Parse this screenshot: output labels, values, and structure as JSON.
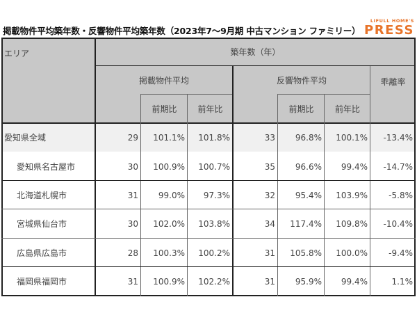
{
  "title": "掲載物件平均築年数・反響物件平均築年数（2023年7〜9月期 中古マンション ファミリー）",
  "logo": {
    "top": "LIFULL HOME'S",
    "main": "PRESS",
    "color": "#e8742a"
  },
  "table": {
    "headers": {
      "area": "エリア",
      "group": "築年数（年）",
      "listed": "掲載物件平均",
      "responded": "反響物件平均",
      "divergence": "乖離率",
      "qoq": "前期比",
      "yoy": "前年比"
    },
    "rows": [
      {
        "area": "愛知県全域",
        "listed": "29",
        "listed_qoq": "101.1%",
        "listed_yoy": "101.8%",
        "responded": "33",
        "responded_qoq": "96.8%",
        "responded_yoy": "100.1%",
        "divergence": "-13.4%"
      },
      {
        "area": "愛知県名古屋市",
        "listed": "30",
        "listed_qoq": "100.9%",
        "listed_yoy": "100.7%",
        "responded": "35",
        "responded_qoq": "96.6%",
        "responded_yoy": "99.4%",
        "divergence": "-14.7%"
      },
      {
        "area": "北海道札幌市",
        "listed": "31",
        "listed_qoq": "99.0%",
        "listed_yoy": "97.3%",
        "responded": "32",
        "responded_qoq": "95.4%",
        "responded_yoy": "103.9%",
        "divergence": "-5.8%"
      },
      {
        "area": "宮城県仙台市",
        "listed": "30",
        "listed_qoq": "102.0%",
        "listed_yoy": "103.8%",
        "responded": "34",
        "responded_qoq": "117.4%",
        "responded_yoy": "109.8%",
        "divergence": "-10.4%"
      },
      {
        "area": "広島県広島市",
        "listed": "28",
        "listed_qoq": "100.3%",
        "listed_yoy": "100.2%",
        "responded": "31",
        "responded_qoq": "105.8%",
        "responded_yoy": "100.0%",
        "divergence": "-9.4%"
      },
      {
        "area": "福岡県福岡市",
        "listed": "31",
        "listed_qoq": "100.9%",
        "listed_yoy": "102.2%",
        "responded": "31",
        "responded_qoq": "95.9%",
        "responded_yoy": "99.4%",
        "divergence": "1.1%"
      }
    ]
  }
}
